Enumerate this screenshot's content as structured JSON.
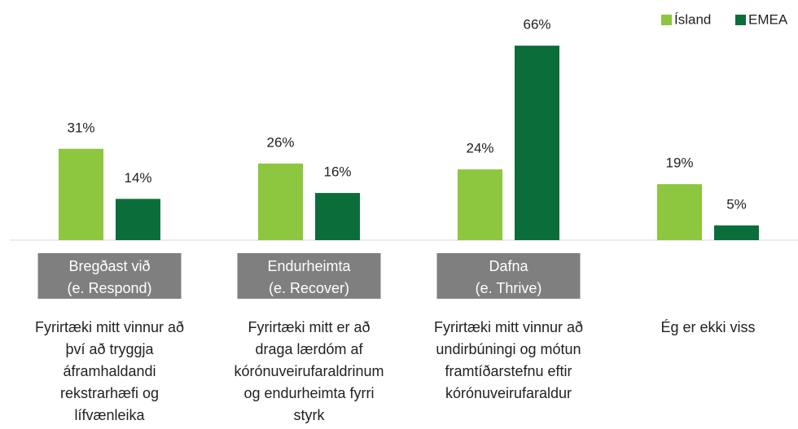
{
  "chart_data": {
    "type": "bar",
    "categories": [
      [
        "Bregðast við",
        "(e. Respond)"
      ],
      [
        "Endurheimta",
        "(e. Recover)"
      ],
      [
        "Dafna",
        "(e. Thrive)"
      ],
      null
    ],
    "descriptions": [
      [
        "Fyrirtæki mitt vinnur að",
        "því að tryggja",
        "áframhaldandi",
        "rekstrarhæfi og",
        "lífvænleika"
      ],
      [
        "Fyrirtæki mitt er að",
        "draga lærdóm af",
        "kórónuveirufaraldrinum",
        "og endurheimta fyrri",
        "styrk"
      ],
      [
        "Fyrirtæki mitt vinnur að",
        "undirbúningi og mótun",
        "framtíðarstefnu eftir",
        "kórónuveirufaraldur"
      ],
      [
        "Ég er ekki viss"
      ]
    ],
    "series": [
      {
        "name": "Ísland",
        "color": "#8dc63f",
        "values": [
          31,
          26,
          24,
          19
        ],
        "value_labels": [
          "31%",
          "26%",
          "24%",
          "19%"
        ]
      },
      {
        "name": "EMEA",
        "color": "#0b6e3a",
        "values": [
          14,
          16,
          66,
          5
        ],
        "value_labels": [
          "14%",
          "16%",
          "66%",
          "5%"
        ]
      }
    ],
    "legend": "top-right"
  }
}
